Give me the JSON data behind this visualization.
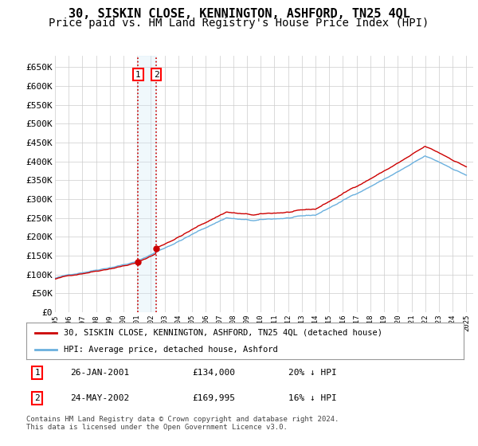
{
  "title": "30, SISKIN CLOSE, KENNINGTON, ASHFORD, TN25 4QL",
  "subtitle": "Price paid vs. HM Land Registry's House Price Index (HPI)",
  "ylim": [
    0,
    680000
  ],
  "yticks": [
    0,
    50000,
    100000,
    150000,
    200000,
    250000,
    300000,
    350000,
    400000,
    450000,
    500000,
    550000,
    600000,
    650000
  ],
  "sale1_date": 2001.07,
  "sale1_price": 134000,
  "sale2_date": 2002.38,
  "sale2_price": 169995,
  "hpi_color": "#6ab0de",
  "price_color": "#cc0000",
  "shading_color": "#d0e8f8",
  "grid_color": "#cccccc",
  "legend_address": "30, SISKIN CLOSE, KENNINGTON, ASHFORD, TN25 4QL (detached house)",
  "legend_hpi": "HPI: Average price, detached house, Ashford",
  "table_row1": [
    "1",
    "26-JAN-2001",
    "£134,000",
    "20% ↓ HPI"
  ],
  "table_row2": [
    "2",
    "24-MAY-2002",
    "£169,995",
    "16% ↓ HPI"
  ],
  "footer": "Contains HM Land Registry data © Crown copyright and database right 2024.\nThis data is licensed under the Open Government Licence v3.0.",
  "title_fontsize": 11,
  "subtitle_fontsize": 10,
  "tick_fontsize": 8
}
